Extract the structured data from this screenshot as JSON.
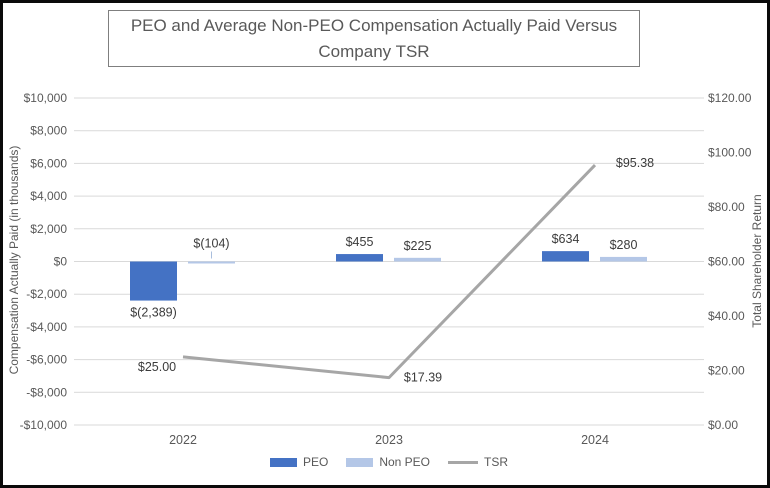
{
  "chart_data": {
    "type": "combo-bar-line",
    "title": "PEO and Average Non-PEO Compensation Actually Paid Versus Company TSR",
    "categories": [
      "2022",
      "2023",
      "2024"
    ],
    "series": [
      {
        "name": "PEO",
        "type": "bar",
        "axis": "left",
        "color": "#4472C4",
        "values": [
          -2389,
          455,
          634
        ],
        "labels": [
          "$(2,389)",
          "$455",
          "$634"
        ],
        "label_pos": [
          "below",
          "above",
          "above"
        ]
      },
      {
        "name": "Non PEO",
        "type": "bar",
        "axis": "left",
        "color": "#B4C7E7",
        "values": [
          -104,
          225,
          280
        ],
        "labels": [
          "$(104)",
          "$225",
          "$280"
        ],
        "label_pos": [
          "callout",
          "above",
          "above"
        ]
      },
      {
        "name": "TSR",
        "type": "line",
        "axis": "right",
        "color": "#A6A6A6",
        "values": [
          25.0,
          17.39,
          95.38
        ],
        "labels": [
          "$25.00",
          "$17.39",
          "$95.38"
        ],
        "label_offsets": [
          [
            -26,
            14
          ],
          [
            34,
            4
          ],
          [
            40,
            2
          ]
        ]
      }
    ],
    "left_axis": {
      "title": "Compensation Actually Paid (in thousands)",
      "min": -10000,
      "max": 10000,
      "step": 2000,
      "tick_labels": [
        "$10,000",
        "$8,000",
        "$6,000",
        "$4,000",
        "$2,000",
        "$0",
        "-$2,000",
        "-$4,000",
        "-$6,000",
        "-$8,000",
        "-$10,000"
      ]
    },
    "right_axis": {
      "title": "Total Shareholder Return",
      "min": 0,
      "max": 120,
      "step": 20,
      "tick_labels": [
        "$120.00",
        "$100.00",
        "$80.00",
        "$60.00",
        "$40.00",
        "$20.00",
        "$0.00"
      ]
    },
    "legend": {
      "position": "bottom",
      "entries": [
        "PEO",
        "Non PEO",
        "TSR"
      ]
    },
    "grid": true,
    "colors": {
      "gridline": "#D9D9D9",
      "tick_text": "#595959",
      "data_label_text": "#3B3B3B",
      "callout_leader": "#A9BEDD",
      "title_text": "#595959"
    }
  }
}
